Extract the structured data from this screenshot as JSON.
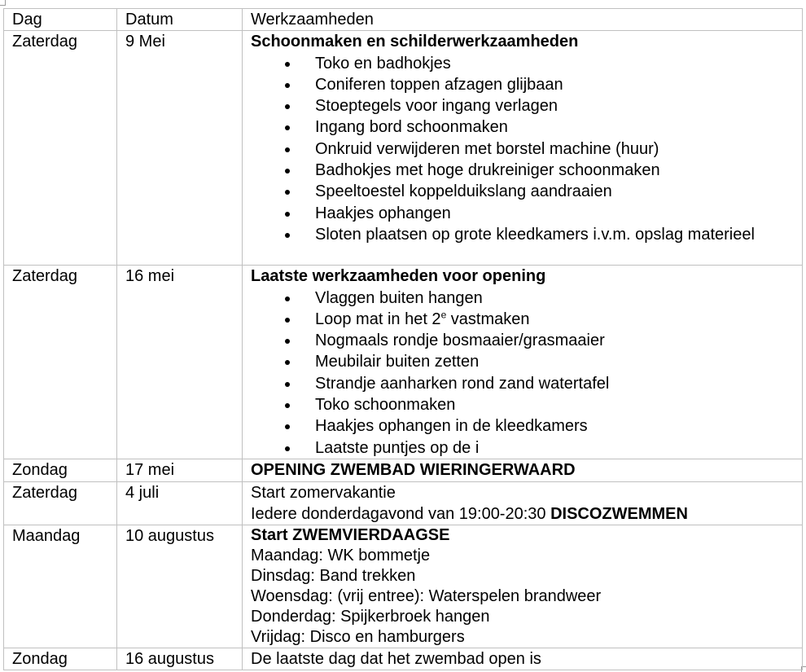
{
  "headers": [
    "Dag",
    "Datum",
    "Werkzaamheden"
  ],
  "rows": [
    {
      "dag": "Zaterdag",
      "datum": "9 Mei",
      "title": "Schoonmaken en schilderwerkzaamheden",
      "items": [
        "Toko en badhokjes",
        "Coniferen toppen afzagen glijbaan",
        "Stoeptegels voor ingang verlagen",
        "Ingang bord schoonmaken",
        "Onkruid verwijderen met borstel machine (huur)",
        "Badhokjes met hoge drukreiniger schoonmaken",
        "Speeltoestel koppelduikslang aandraaien",
        "Haakjes ophangen",
        "Sloten plaatsen op grote kleedkamers i.v.m. opslag materieel"
      ]
    },
    {
      "dag": "Zaterdag",
      "datum": "16 mei",
      "title": "Laatste werkzaamheden voor opening",
      "items": [
        "Vlaggen buiten hangen",
        "Loop mat in het 2",
        "Nogmaals rondje bosmaaier/grasmaaier",
        "Meubilair buiten zetten",
        "Strandje aanharken rond zand watertafel",
        "Toko schoonmaken",
        "Haakjes ophangen in de kleedkamers",
        "Laatste puntjes op de i"
      ],
      "sup": "e",
      "item2_rest": " vastmaken"
    },
    {
      "dag": "Zondag",
      "datum": "17 mei",
      "title": "OPENING ZWEMBAD WIERINGERWAARD"
    },
    {
      "dag": "Zaterdag",
      "datum": "4 juli",
      "line1": "Start zomervakantie",
      "line2": "Iedere donderdagavond van 19:00-20:30 ",
      "line2_bold": "DISCOZWEMMEN"
    },
    {
      "dag": "Maandag",
      "datum": "10 augustus",
      "title": "Start ZWEMVIERDAAGSE",
      "lines": [
        "Maandag: WK bommetje",
        "Dinsdag: Band trekken",
        "Woensdag: (vrij entree): Waterspelen brandweer",
        "Donderdag: Spijkerbroek hangen",
        "Vrijdag: Disco en hamburgers"
      ]
    },
    {
      "dag": "Zondag",
      "datum": "16 augustus",
      "line1": "De laatste dag dat het zwembad open is"
    }
  ]
}
